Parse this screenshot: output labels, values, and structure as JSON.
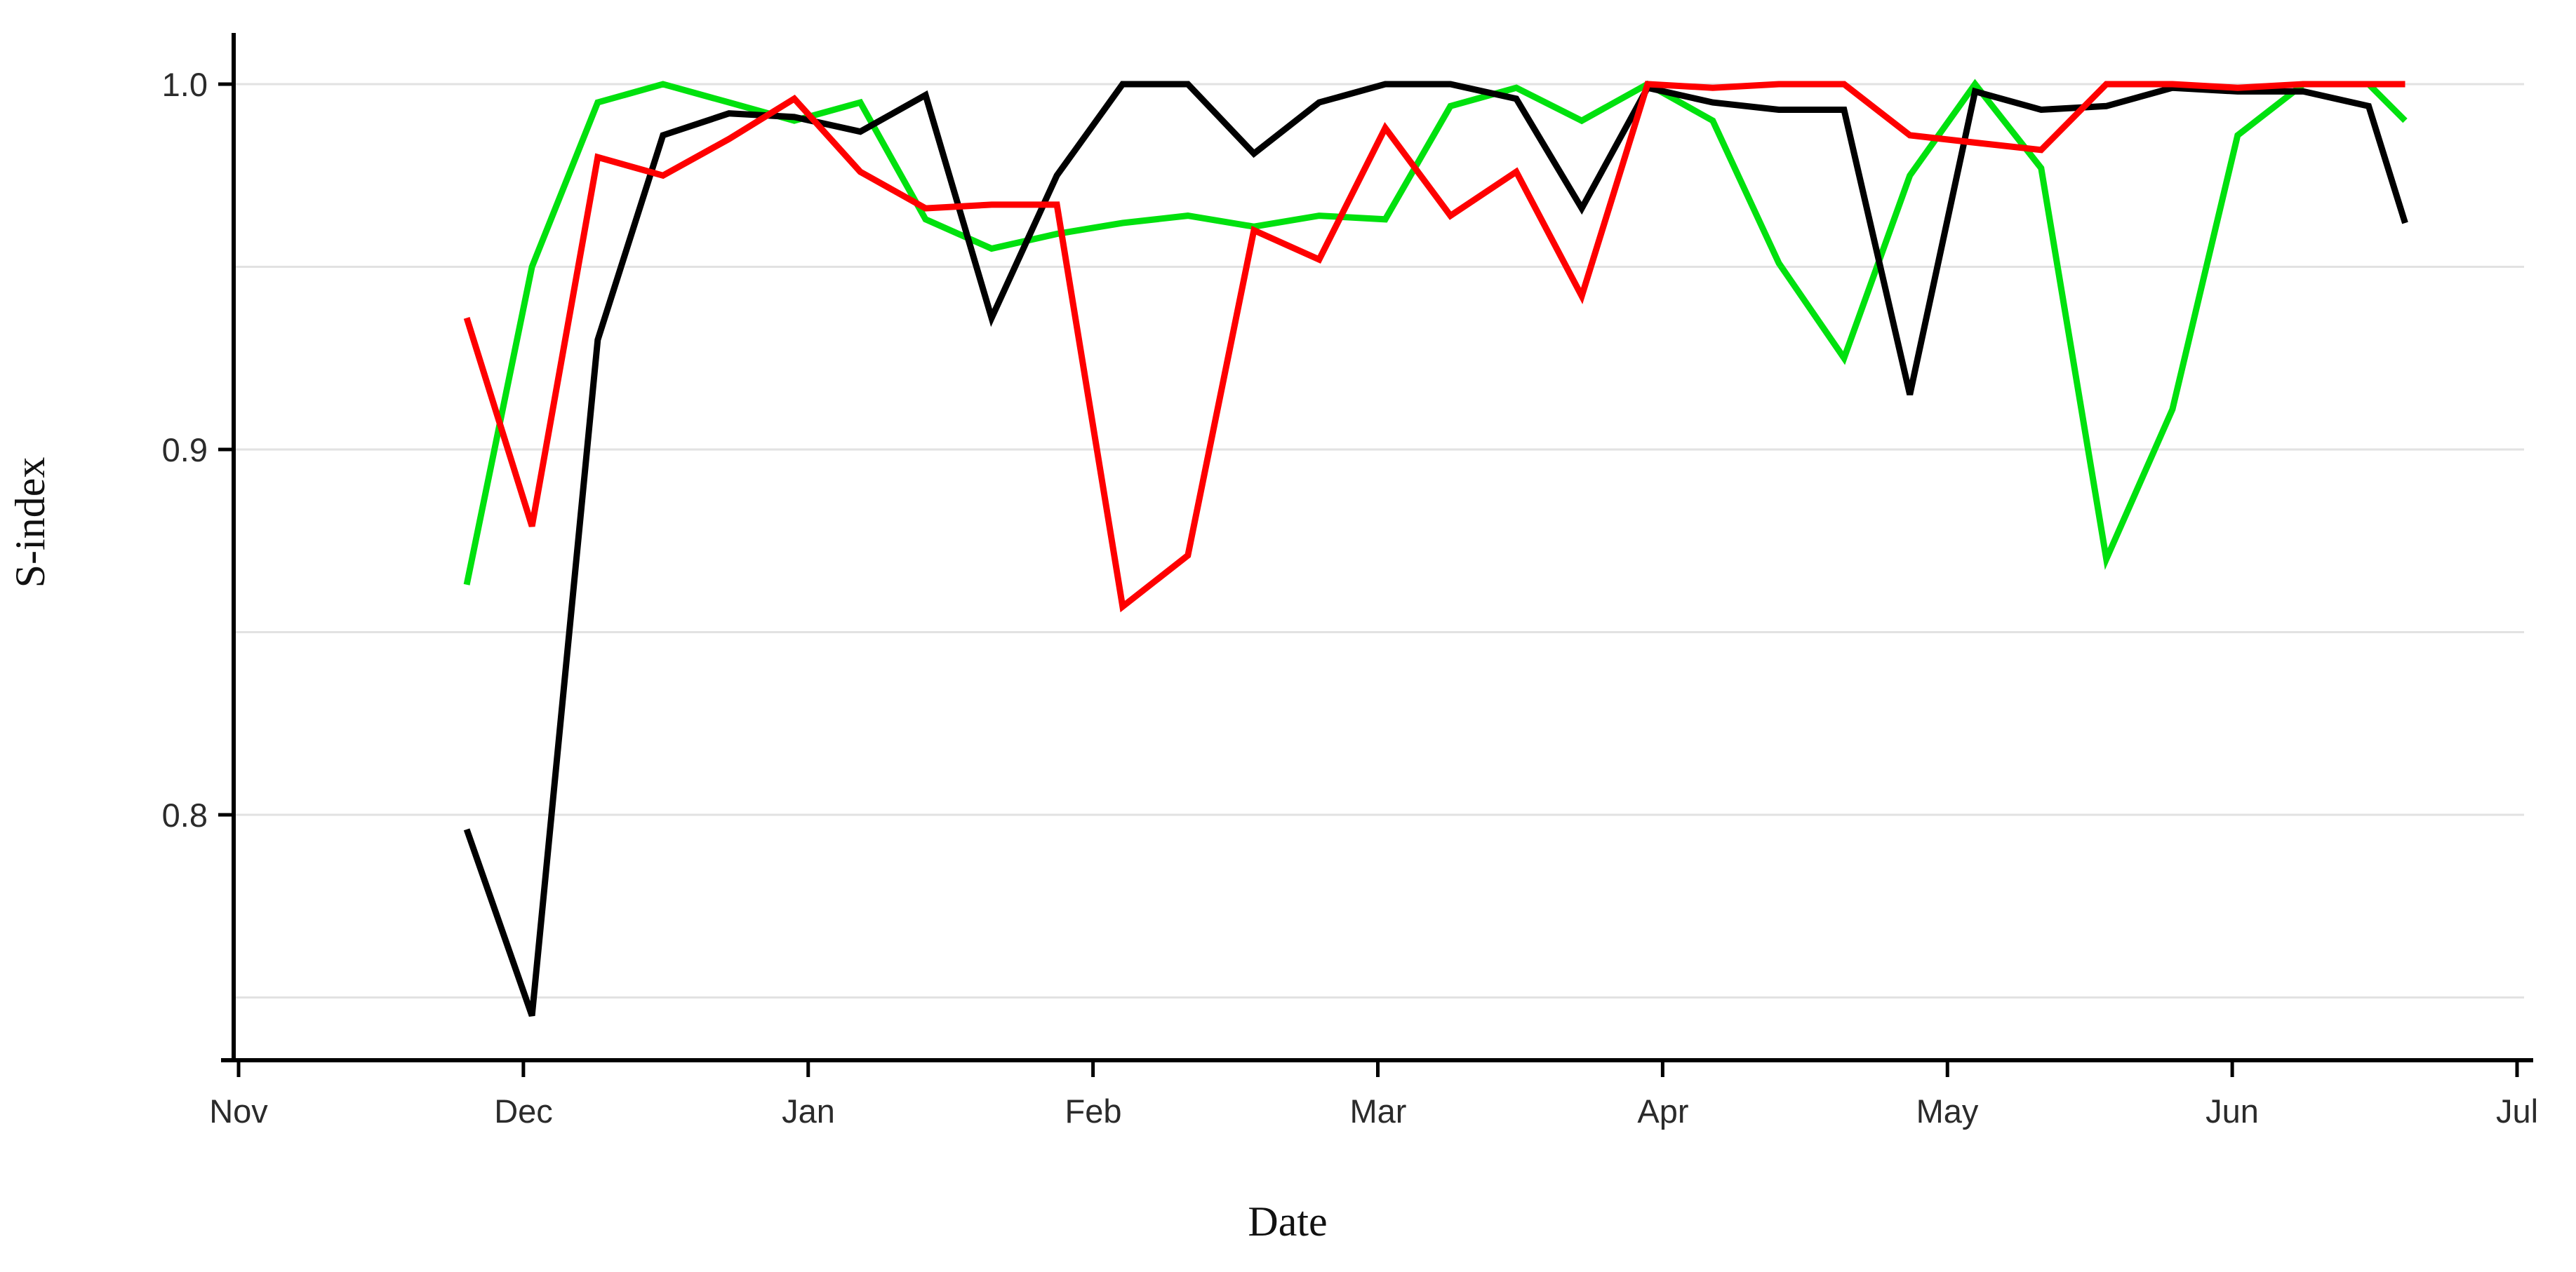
{
  "chart_data": {
    "type": "line",
    "title": "",
    "xlabel": "Date",
    "ylabel": "S-index",
    "x_tick_labels": [
      "Nov",
      "Dec",
      "Jan",
      "Feb",
      "Mar",
      "Apr",
      "May",
      "Jun",
      "Jul"
    ],
    "y_tick_labels": [
      "1.0",
      "0.9",
      "0.8"
    ],
    "y_tick_values": [
      1.0,
      0.9,
      0.8
    ],
    "y_gridline_values": [
      1.0,
      0.95,
      0.9,
      0.85,
      0.8,
      0.75
    ],
    "ylim": [
      0.732,
      1.014
    ],
    "grid": true,
    "legend_position": "none",
    "x_unit": "weekly observations, months shown Nov through Jul",
    "dates_approx": [
      "Nov 25",
      "Dec 2",
      "Dec 9",
      "Dec 16",
      "Dec 23",
      "Dec 30",
      "Jan 6",
      "Jan 13",
      "Jan 20",
      "Jan 27",
      "Feb 3",
      "Feb 10",
      "Feb 17",
      "Feb 24",
      "Mar 2",
      "Mar 9",
      "Mar 16",
      "Mar 23",
      "Mar 30",
      "Apr 6",
      "Apr 13",
      "Apr 20",
      "Apr 27",
      "May 4",
      "May 11",
      "May 18",
      "May 25",
      "Jun 1",
      "Jun 8",
      "Jun 15",
      "Jun 19"
    ],
    "x_month_offsets": [
      0.801,
      1.03,
      1.261,
      1.49,
      1.722,
      1.951,
      2.183,
      2.412,
      2.644,
      2.873,
      3.104,
      3.333,
      3.565,
      3.794,
      4.026,
      4.255,
      4.486,
      4.716,
      4.947,
      5.176,
      5.408,
      5.637,
      5.868,
      6.097,
      6.329,
      6.558,
      6.79,
      7.019,
      7.25,
      7.479,
      7.607
    ],
    "series": [
      {
        "name": "series-green",
        "color": "#00e10e",
        "values": [
          0.863,
          0.95,
          0.995,
          1.0,
          0.995,
          0.99,
          0.995,
          0.963,
          0.955,
          0.959,
          0.962,
          0.964,
          0.961,
          0.964,
          0.963,
          0.994,
          0.999,
          0.99,
          1.0,
          0.99,
          0.951,
          0.925,
          0.975,
          1.0,
          0.977,
          0.87,
          0.911,
          0.986,
          1.0,
          1.0,
          0.99
        ]
      },
      {
        "name": "series-black",
        "color": "#000000",
        "values": [
          0.796,
          0.745,
          0.93,
          0.986,
          0.992,
          0.991,
          0.987,
          0.997,
          0.936,
          0.975,
          1.0,
          1.0,
          0.981,
          0.995,
          1.0,
          1.0,
          0.996,
          0.966,
          0.999,
          0.995,
          0.993,
          0.993,
          0.915,
          0.998,
          0.993,
          0.994,
          0.999,
          0.998,
          0.998,
          0.994,
          0.962
        ]
      },
      {
        "name": "series-red",
        "color": "#fe0000",
        "values": [
          0.936,
          0.879,
          0.98,
          0.975,
          0.985,
          0.996,
          0.976,
          0.966,
          0.967,
          0.967,
          0.857,
          0.871,
          0.96,
          0.952,
          0.988,
          0.964,
          0.976,
          0.942,
          1.0,
          0.999,
          1.0,
          1.0,
          0.986,
          0.984,
          0.982,
          1.0,
          1.0,
          0.999,
          1.0,
          1.0,
          1.0
        ]
      }
    ],
    "style": {
      "line_width": 9,
      "axis_color": "#000000",
      "gridline_color": "#e2e2e2",
      "background": "#ffffff"
    }
  }
}
